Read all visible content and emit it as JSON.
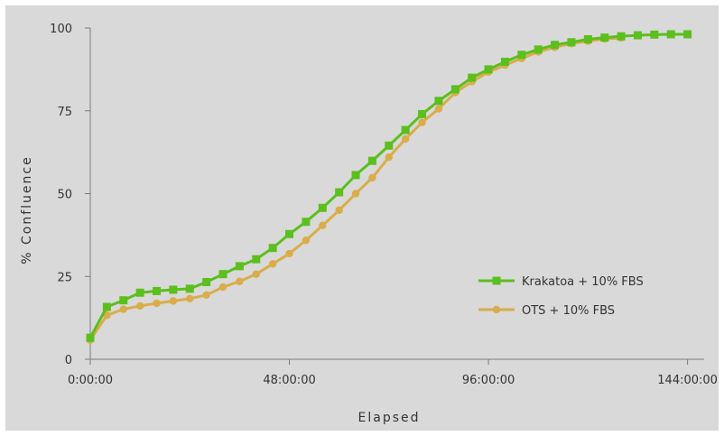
{
  "chart_data": {
    "type": "line",
    "xlabel": "Elapsed",
    "ylabel": "% Confluence",
    "x_unit": "hours",
    "xlim": [
      0,
      148
    ],
    "ylim": [
      0,
      100
    ],
    "x_ticks": [
      {
        "value": 0,
        "label": "0:00:00"
      },
      {
        "value": 48,
        "label": "48:00:00"
      },
      {
        "value": 96,
        "label": "96:00:00"
      },
      {
        "value": 144,
        "label": "144:00:00"
      }
    ],
    "y_ticks": [
      0,
      25,
      50,
      75,
      100
    ],
    "legend_position": "right",
    "series": [
      {
        "name": "Krakatoa + 10% FBS",
        "color": "#5bbf1e",
        "marker": "square",
        "x": [
          0,
          4,
          8,
          12,
          16,
          20,
          24,
          28,
          32,
          36,
          40,
          44,
          48,
          52,
          56,
          60,
          64,
          68,
          72,
          76,
          80,
          84,
          88,
          92,
          96,
          100,
          104,
          108,
          112,
          116,
          120,
          124,
          128,
          132,
          136,
          140,
          144
        ],
        "y": [
          6.5,
          15.8,
          17.8,
          20.1,
          20.6,
          21.0,
          21.3,
          23.3,
          25.7,
          28.1,
          30.2,
          33.6,
          37.8,
          41.5,
          45.7,
          50.4,
          55.6,
          59.9,
          64.5,
          69.2,
          74.0,
          78.0,
          81.5,
          85.0,
          87.5,
          89.8,
          91.9,
          93.5,
          94.9,
          95.7,
          96.6,
          97.1,
          97.5,
          97.8,
          98.0,
          98.1,
          98.1
        ]
      },
      {
        "name": "OTS + 10% FBS",
        "color": "#d9ad4a",
        "marker": "circle",
        "x": [
          0,
          4,
          8,
          12,
          16,
          20,
          24,
          28,
          32,
          36,
          40,
          44,
          48,
          52,
          56,
          60,
          64,
          68,
          72,
          76,
          80,
          84,
          88,
          92,
          96,
          100,
          104,
          108,
          112,
          116,
          120,
          124,
          128
        ],
        "y": [
          5.8,
          13.3,
          15.1,
          16.1,
          16.9,
          17.6,
          18.3,
          19.4,
          21.8,
          23.5,
          25.7,
          28.8,
          31.9,
          35.9,
          40.4,
          45.0,
          50.0,
          54.8,
          61.0,
          66.5,
          71.5,
          75.6,
          80.5,
          83.8,
          86.7,
          88.8,
          90.8,
          92.8,
          94.2,
          95.3,
          96.0,
          96.7,
          97.0
        ]
      }
    ]
  }
}
